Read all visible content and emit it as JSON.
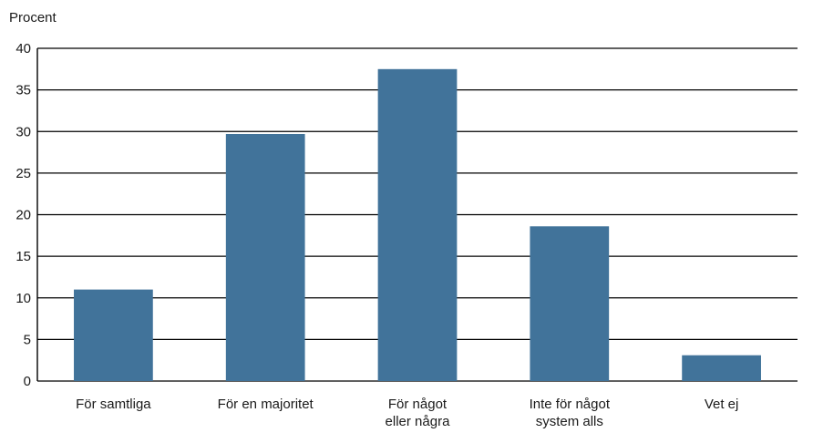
{
  "chart_data": {
    "type": "bar",
    "ylabel": "Procent",
    "xlabel": "",
    "ylim": [
      0,
      40
    ],
    "yticks": [
      0,
      5,
      10,
      15,
      20,
      25,
      30,
      35,
      40
    ],
    "grid": true,
    "categories": [
      [
        "För samtliga"
      ],
      [
        "För en majoritet"
      ],
      [
        "För något",
        "eller några"
      ],
      [
        "Inte för något",
        "system alls"
      ],
      [
        "Vet ej"
      ]
    ],
    "values": [
      11,
      29.7,
      37.5,
      18.6,
      3.1
    ],
    "bar_color": "#41739a"
  }
}
